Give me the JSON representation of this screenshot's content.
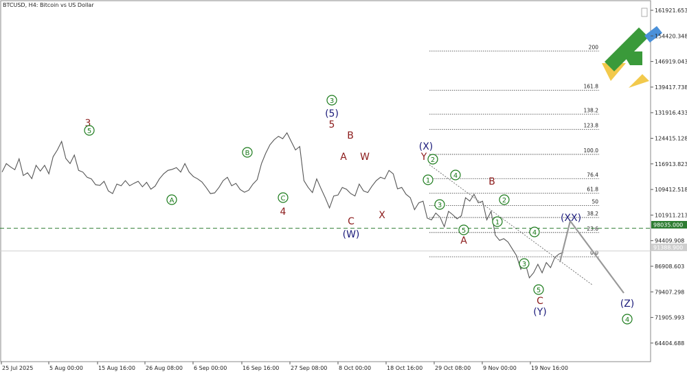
{
  "chart_data": {
    "type": "line",
    "title": "BTCUSD, H4:  Bitcoin vs US Dollar",
    "x_ticks": [
      "25 Jul 2025",
      "5 Aug 00:00",
      "15 Aug 16:00",
      "26 Aug 08:00",
      "6 Sep 00:00",
      "16 Sep 16:00",
      "27 Sep 08:00",
      "8 Oct 00:00",
      "18 Oct 16:00",
      "29 Oct 08:00",
      "9 Nov 00:00",
      "19 Nov 16:00"
    ],
    "y_ticks": [
      "161921.653",
      "154420.348",
      "146919.043",
      "139417.738",
      "131916.433",
      "124415.128",
      "116913.823",
      "109412.518",
      "101911.213",
      "94409.908",
      "86908.603",
      "79407.298",
      "71905.993",
      "64404.688"
    ],
    "ylim": [
      60000,
      166000
    ],
    "current_price_label": "91388.900",
    "dashed_level_label": "98035.000",
    "dashed_level": 98035,
    "grid": false,
    "series": [
      {
        "values": [
          114500,
          117000,
          116000,
          115200,
          118400,
          113500,
          114300,
          112600,
          116500,
          114800,
          116500,
          114000,
          119000,
          121000,
          123500,
          118500,
          117000,
          119500,
          115000,
          114500,
          113000,
          112500,
          110800,
          110600,
          111800,
          109000,
          108200,
          111000,
          110500,
          112000,
          110500,
          111200,
          111800,
          110200,
          111500,
          109500,
          110400,
          112500,
          114000,
          115000,
          115300,
          115800,
          114500,
          117000,
          114500,
          113200,
          112500,
          111600,
          110000,
          108200,
          108400,
          110000,
          112000,
          113000,
          110500,
          111200,
          109400,
          108600,
          109200,
          111000,
          112300,
          117000,
          120000,
          122500,
          124000,
          125000,
          124300,
          126000,
          123500,
          121000,
          122000,
          112000,
          110000,
          108500,
          112500,
          109700,
          107000,
          104000,
          107500,
          107800,
          110000,
          109500,
          108200,
          107500,
          111000,
          109000,
          108500,
          110400,
          112000,
          113000,
          112500,
          115000,
          114000,
          109600,
          110000,
          108000,
          107000,
          103500,
          105500,
          106000,
          101000,
          100500,
          102500,
          101300,
          98500,
          103000,
          102000,
          100800,
          101700,
          107000,
          106000,
          108000,
          105500,
          106000,
          100500,
          103000,
          96000,
          94500,
          95000,
          94000,
          92000,
          90000,
          86000,
          88000,
          83500,
          85000,
          87500,
          85000,
          88000,
          86500,
          89500,
          90500,
          91000
        ]
      }
    ],
    "fib_levels": [
      {
        "label": "200",
        "price": 150000
      },
      {
        "label": "161.8",
        "price": 138500
      },
      {
        "label": "138.2",
        "price": 131500
      },
      {
        "label": "123.8",
        "price": 127000
      },
      {
        "label": "100.0",
        "price": 119700
      },
      {
        "label": "76.4",
        "price": 112600
      },
      {
        "label": "61.8",
        "price": 108300
      },
      {
        "label": "50",
        "price": 104700
      },
      {
        "label": "38.2",
        "price": 101200
      },
      {
        "label": "23.6",
        "price": 96800
      },
      {
        "label": "0.0",
        "price": 89700
      }
    ],
    "annotations": [
      {
        "text": "3",
        "color": "#8b1a1a"
      },
      {
        "text": "5",
        "color": "#1a7a1a",
        "circled": true
      },
      {
        "text": "A",
        "color": "#1a7a1a",
        "circled": true
      },
      {
        "text": "B",
        "color": "#1a7a1a",
        "circled": true
      },
      {
        "text": "C",
        "color": "#1a7a1a",
        "circled": true
      },
      {
        "text": "4",
        "color": "#8b1a1a"
      },
      {
        "text": "3",
        "color": "#1a7a1a",
        "circled": true
      },
      {
        "text": "(5)",
        "color": "#1a1a7a"
      },
      {
        "text": "5",
        "color": "#8b1a1a"
      },
      {
        "text": "B",
        "color": "#8b1a1a"
      },
      {
        "text": "A",
        "color": "#8b1a1a"
      },
      {
        "text": "W",
        "color": "#8b1a1a"
      },
      {
        "text": "C",
        "color": "#8b1a1a"
      },
      {
        "text": "(W)",
        "color": "#1a1a7a"
      },
      {
        "text": "X",
        "color": "#8b1a1a"
      },
      {
        "text": "(X)",
        "color": "#1a1a7a"
      },
      {
        "text": "Y",
        "color": "#8b1a1a"
      },
      {
        "text": "2",
        "color": "#1a7a1a",
        "circled": true
      },
      {
        "text": "1",
        "color": "#1a7a1a",
        "circled": true
      },
      {
        "text": "4",
        "color": "#1a7a1a",
        "circled": true
      },
      {
        "text": "3",
        "color": "#1a7a1a",
        "circled": true
      },
      {
        "text": "5",
        "color": "#1a7a1a",
        "circled": true
      },
      {
        "text": "A",
        "color": "#8b1a1a"
      },
      {
        "text": "B",
        "color": "#8b1a1a"
      },
      {
        "text": "2",
        "color": "#1a7a1a",
        "circled": true
      },
      {
        "text": "1",
        "color": "#1a7a1a",
        "circled": true
      },
      {
        "text": "4",
        "color": "#1a7a1a",
        "circled": true
      },
      {
        "text": "3",
        "color": "#1a7a1a",
        "circled": true
      },
      {
        "text": "5",
        "color": "#1a7a1a",
        "circled": true
      },
      {
        "text": "C",
        "color": "#8b1a1a"
      },
      {
        "text": "(Y)",
        "color": "#1a1a7a"
      },
      {
        "text": "(XX)",
        "color": "#1a1a7a"
      },
      {
        "text": "(Z)",
        "color": "#1a1a7a"
      },
      {
        "text": "4",
        "color": "#1a7a1a",
        "circled": true
      }
    ],
    "forecast": {
      "color": "#999999"
    },
    "colors": {
      "price_line": "#555555",
      "dashed_level": "#2e7d32",
      "fib": "#333333",
      "logo_green": "#3a9a3a",
      "logo_yellow": "#f2c94c",
      "logo_blue": "#4a90d9"
    }
  }
}
